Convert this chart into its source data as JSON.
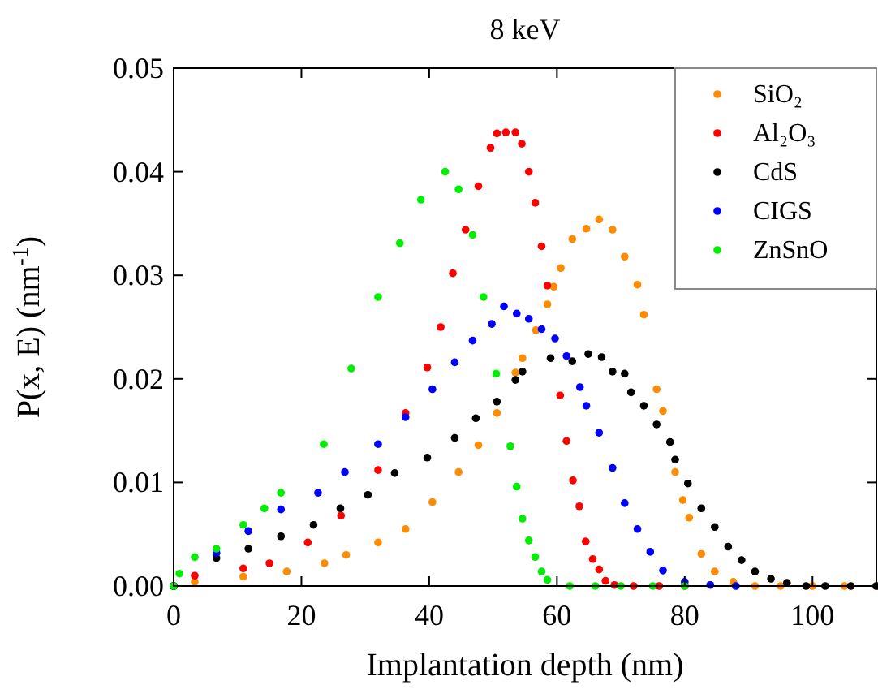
{
  "chart_data": {
    "type": "scatter",
    "title": "8 keV",
    "xlabel": "Implantation depth (nm)",
    "ylabel": "P(x, E) (nm$^{-1}$)",
    "xlim": [
      0,
      110
    ],
    "ylim": [
      0,
      0.05
    ],
    "xticks": [
      0,
      20,
      40,
      60,
      80,
      100
    ],
    "yticks": [
      {
        "value": 0,
        "label": "0.00"
      },
      {
        "value": 0.01,
        "label": "0.01"
      },
      {
        "value": 0.02,
        "label": "0.02"
      },
      {
        "value": 0.03,
        "label": "0.03"
      },
      {
        "value": 0.04,
        "label": "0.04"
      },
      {
        "value": 0.05,
        "label": "0.05"
      }
    ],
    "marker": "circle",
    "legend": "top right",
    "grid": false,
    "series": [
      {
        "name": "SiO₂",
        "color": "#ff8c00",
        "x": [
          0,
          3.3,
          10.9,
          17.7,
          23.6,
          27,
          32,
          36.3,
          40.5,
          44.6,
          47.7,
          50.6,
          53.5,
          54.6,
          56.7,
          58.5,
          59.5,
          60.6,
          62.4,
          64.6,
          66.6,
          68.7,
          70.6,
          72.6,
          73.6,
          75.6,
          76.6,
          78.5,
          79.7,
          80.7,
          82.6,
          84.7,
          87.6,
          91,
          95,
          100,
          105,
          110
        ],
        "values": [
          0,
          0.0004,
          0.0009,
          0.0014,
          0.0022,
          0.003,
          0.0042,
          0.0055,
          0.0081,
          0.011,
          0.0136,
          0.0167,
          0.0206,
          0.022,
          0.0247,
          0.0272,
          0.0289,
          0.0307,
          0.0335,
          0.0345,
          0.0354,
          0.0344,
          0.0318,
          0.0291,
          0.0262,
          0.019,
          0.0169,
          0.011,
          0.0083,
          0.0066,
          0.0031,
          0.0014,
          0.0004,
          0,
          0,
          0,
          0,
          0
        ]
      },
      {
        "name": "Al₂O₃",
        "color": "#ff0000",
        "x": [
          0,
          3.3,
          10.9,
          15,
          21,
          26.2,
          32,
          36.3,
          39.7,
          41.8,
          43.7,
          45.7,
          47.7,
          49.6,
          50.6,
          52,
          53.5,
          54.5,
          55.6,
          56.6,
          57.6,
          58.5,
          60.5,
          61.5,
          62.5,
          63.5,
          64.5,
          65.6,
          66.6,
          67.6,
          69,
          72,
          76,
          80
        ],
        "values": [
          0,
          0.001,
          0.0017,
          0.0022,
          0.0042,
          0.0068,
          0.0112,
          0.0167,
          0.0211,
          0.025,
          0.0302,
          0.0344,
          0.0386,
          0.0423,
          0.0437,
          0.0438,
          0.0438,
          0.0427,
          0.04,
          0.037,
          0.0328,
          0.029,
          0.0184,
          0.014,
          0.0102,
          0.0077,
          0.0043,
          0.0026,
          0.0016,
          0.0005,
          0.0001,
          0,
          0,
          0
        ]
      },
      {
        "name": "CdS",
        "color": "#000000",
        "x": [
          0,
          6.7,
          11.7,
          16.8,
          21.9,
          26.1,
          30.4,
          34.6,
          39.7,
          44,
          47.3,
          50.6,
          53.5,
          54.6,
          59,
          62.4,
          64.9,
          67,
          68.7,
          70.6,
          71.6,
          73.6,
          75.6,
          77.7,
          78.5,
          80.5,
          82.6,
          84.7,
          86.8,
          88.9,
          91,
          93.5,
          96,
          99,
          102,
          106,
          110
        ],
        "values": [
          0,
          0.0027,
          0.0036,
          0.0048,
          0.0059,
          0.0075,
          0.0088,
          0.0109,
          0.0124,
          0.0143,
          0.0162,
          0.0178,
          0.0199,
          0.0207,
          0.022,
          0.0217,
          0.0224,
          0.0221,
          0.0207,
          0.0205,
          0.0187,
          0.0174,
          0.0156,
          0.0139,
          0.0122,
          0.0099,
          0.0075,
          0.0057,
          0.0038,
          0.0025,
          0.0014,
          0.0007,
          0.0003,
          0,
          0,
          0,
          0
        ]
      },
      {
        "name": "CIGS",
        "color": "#0000ff",
        "x": [
          0,
          6.7,
          11.7,
          16.8,
          22.6,
          26.8,
          32,
          36.3,
          40.5,
          44,
          46.8,
          49.8,
          51.7,
          53.7,
          55.6,
          57.6,
          59.7,
          61.5,
          63.6,
          64.6,
          66.6,
          68.7,
          70.6,
          72.6,
          74.6,
          76.6,
          80,
          84,
          88
        ],
        "values": [
          0,
          0.0032,
          0.0053,
          0.0074,
          0.009,
          0.011,
          0.0137,
          0.0163,
          0.019,
          0.0216,
          0.0237,
          0.0253,
          0.027,
          0.0263,
          0.0258,
          0.0248,
          0.0239,
          0.0222,
          0.0192,
          0.0174,
          0.0148,
          0.0114,
          0.008,
          0.0055,
          0.0033,
          0.0015,
          0.0004,
          0.0001,
          0
        ]
      },
      {
        "name": "ZnSnO",
        "color": "#00ee00",
        "x": [
          0,
          0.9,
          3.3,
          6.7,
          10.9,
          14.2,
          16.8,
          23.5,
          27.8,
          32,
          35.4,
          38.7,
          42.5,
          44.6,
          46.8,
          48.5,
          50.5,
          52.7,
          53.7,
          54.6,
          55.6,
          56.6,
          57.6,
          58.5,
          62,
          66,
          70,
          75,
          80
        ],
        "values": [
          0,
          0.0012,
          0.0028,
          0.0036,
          0.0059,
          0.0075,
          0.009,
          0.0137,
          0.021,
          0.0279,
          0.0331,
          0.0373,
          0.04,
          0.0383,
          0.0339,
          0.0279,
          0.0205,
          0.0135,
          0.0096,
          0.0065,
          0.0044,
          0.0028,
          0.0014,
          0.0006,
          0,
          0,
          0,
          0,
          0
        ]
      }
    ]
  }
}
